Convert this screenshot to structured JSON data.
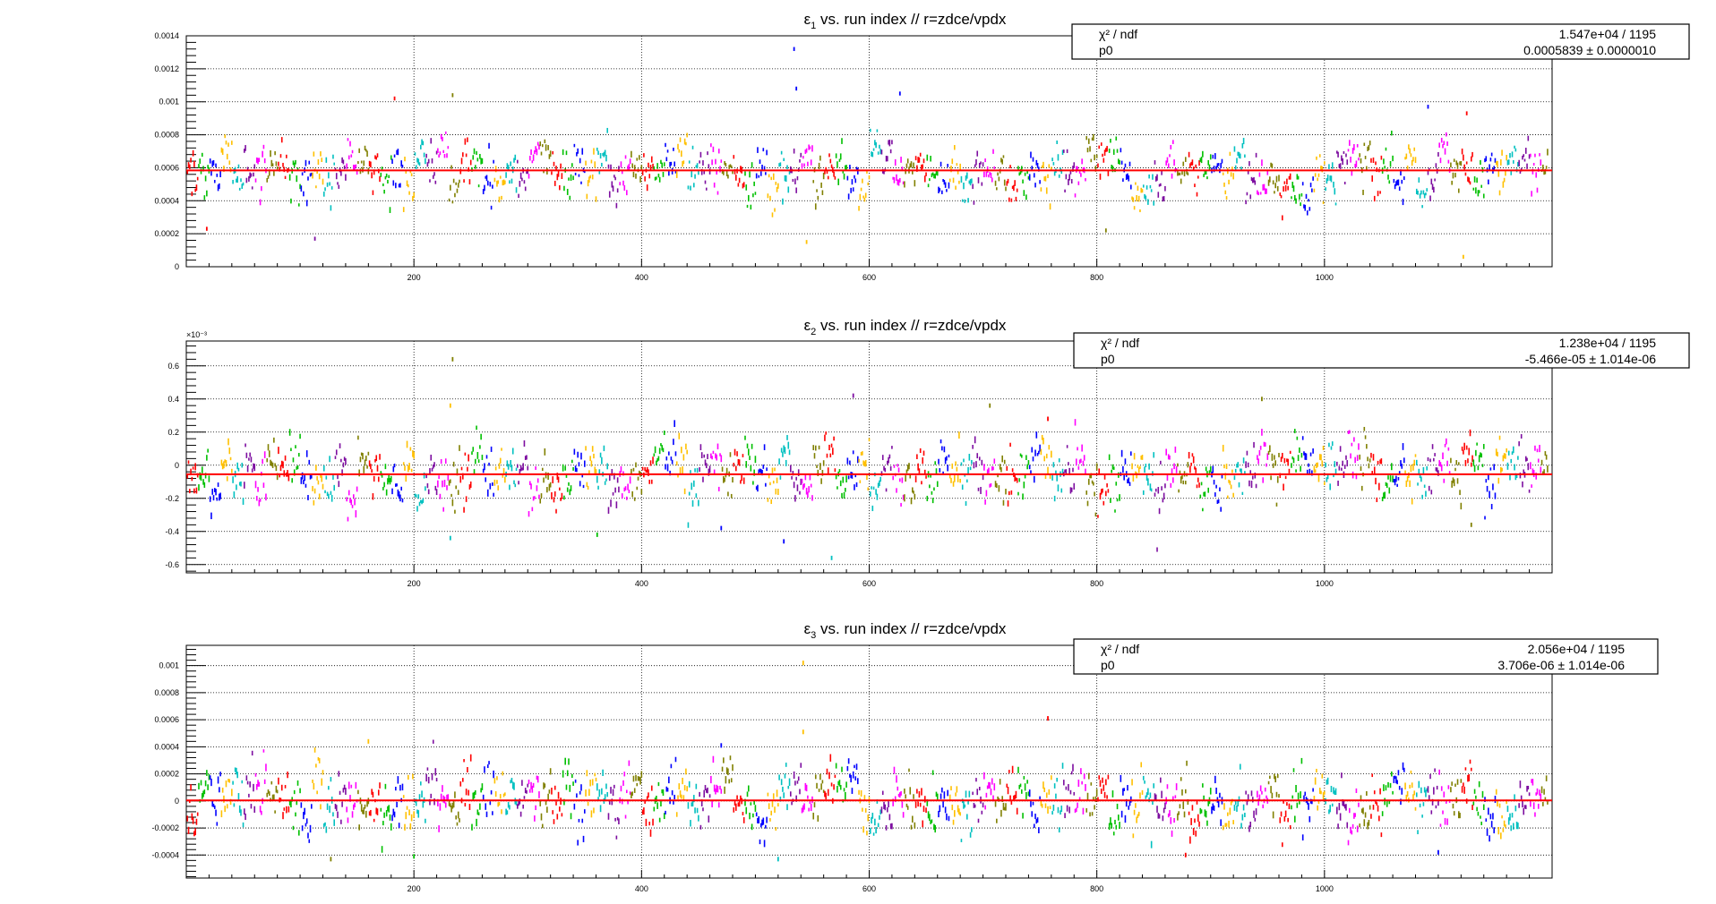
{
  "chart_data": [
    {
      "type": "scatter",
      "title": "ε₁ vs. run index // r=zdce/vpdx",
      "title_main": "ε",
      "title_sub": "1",
      "title_rest": " vs. run index // r=zdce/vpdx",
      "xlim": [
        0,
        1200
      ],
      "ylim": [
        0,
        0.0014
      ],
      "x_ticks": [
        200,
        400,
        600,
        800,
        1000
      ],
      "y_ticks": [
        0,
        0.0002,
        0.0004,
        0.0006,
        0.0008,
        0.001,
        0.0012,
        0.0014
      ],
      "y_tick_labels": [
        "0",
        "0.0002",
        "0.0004",
        "0.0006",
        "0.0008",
        "0.001",
        "0.0012",
        "0.0014"
      ],
      "y_exponent_label": "",
      "grid": true,
      "fit": {
        "name": "p0",
        "value": 0.0005839
      },
      "stats_box": {
        "row1_label": "χ² / ndf",
        "row1_value": "1.547e+04 / 1195",
        "row2_label": "p0",
        "row2_value": "0.0005839 ± 0.0000010"
      },
      "series_summary": {
        "n_points": 1196,
        "center": 0.00058,
        "spread": 0.0001
      },
      "outliers": [
        {
          "x": 534,
          "y": 0.00132,
          "color_index": 2
        },
        {
          "x": 536,
          "y": 0.00108,
          "color_index": 2
        },
        {
          "x": 234,
          "y": 0.00104,
          "color_index": 7
        },
        {
          "x": 183,
          "y": 0.00102,
          "color_index": 0
        },
        {
          "x": 627,
          "y": 0.00105,
          "color_index": 2
        },
        {
          "x": 1091,
          "y": 0.00097,
          "color_index": 2
        },
        {
          "x": 1125,
          "y": 0.00093,
          "color_index": 0
        },
        {
          "x": 113,
          "y": 0.00017,
          "color_index": 5
        },
        {
          "x": 18,
          "y": 0.00023,
          "color_index": 0
        },
        {
          "x": 1122,
          "y": 6e-05,
          "color_index": 3
        },
        {
          "x": 545,
          "y": 0.00015,
          "color_index": 3
        },
        {
          "x": 808,
          "y": 0.00022,
          "color_index": 7
        }
      ]
    },
    {
      "type": "scatter",
      "title": "ε₂ vs. run index // r=zdce/vpdx",
      "title_main": "ε",
      "title_sub": "2",
      "title_rest": " vs. run index // r=zdce/vpdx",
      "xlim": [
        0,
        1200
      ],
      "ylim": [
        -0.65,
        0.75
      ],
      "x_ticks": [
        200,
        400,
        600,
        800,
        1000
      ],
      "y_ticks": [
        -0.6,
        -0.4,
        -0.2,
        0,
        0.2,
        0.4,
        0.6
      ],
      "y_tick_labels": [
        "-0.6",
        "-0.4",
        "-0.2",
        "0",
        "0.2",
        "0.4",
        "0.6"
      ],
      "y_exponent_label": "×10⁻³",
      "grid": true,
      "fit": {
        "name": "p0",
        "value": -0.05466
      },
      "stats_box": {
        "row1_label": "χ² / ndf",
        "row1_value": "1.238e+04 / 1195",
        "row2_label": "p0",
        "row2_value": "-5.466e-05 ± 1.014e-06"
      },
      "series_summary": {
        "n_points": 1196,
        "center": -0.05,
        "spread": 0.11
      },
      "outliers": [
        {
          "x": 234,
          "y": 0.64,
          "color_index": 7
        },
        {
          "x": 232,
          "y": 0.36,
          "color_index": 3
        },
        {
          "x": 586,
          "y": 0.42,
          "color_index": 5
        },
        {
          "x": 706,
          "y": 0.36,
          "color_index": 7
        },
        {
          "x": 945,
          "y": 0.4,
          "color_index": 7
        },
        {
          "x": 757,
          "y": 0.28,
          "color_index": 0
        },
        {
          "x": 567,
          "y": -0.56,
          "color_index": 4
        },
        {
          "x": 232,
          "y": -0.44,
          "color_index": 4
        },
        {
          "x": 470,
          "y": -0.38,
          "color_index": 2
        },
        {
          "x": 525,
          "y": -0.46,
          "color_index": 2
        },
        {
          "x": 1129,
          "y": -0.36,
          "color_index": 7
        },
        {
          "x": 361,
          "y": -0.42,
          "color_index": 1
        }
      ]
    },
    {
      "type": "scatter",
      "title": "ε₃ vs. run index // r=zdce/vpdx",
      "title_main": "ε",
      "title_sub": "3",
      "title_rest": " vs. run index // r=zdce/vpdx",
      "xlim": [
        0,
        1200
      ],
      "ylim": [
        -0.00057,
        0.00115
      ],
      "x_ticks": [
        200,
        400,
        600,
        800,
        1000
      ],
      "y_ticks": [
        -0.0004,
        -0.0002,
        0,
        0.0002,
        0.0004,
        0.0006,
        0.0008,
        0.001
      ],
      "y_tick_labels": [
        "-0.0004",
        "-0.0002",
        "0",
        "0.0002",
        "0.0004",
        "0.0006",
        "0.0008",
        "0.001"
      ],
      "y_exponent_label": "",
      "grid": true,
      "fit": {
        "name": "p0",
        "value": 3.706e-06
      },
      "stats_box": {
        "row1_label": "χ² / ndf",
        "row1_value": "2.056e+04 / 1195",
        "row2_label": "p0",
        "row2_value": "3.706e-06 ± 1.014e-06"
      },
      "series_summary": {
        "n_points": 1196,
        "center": 0.0,
        "spread": 0.00014
      },
      "outliers": [
        {
          "x": 542,
          "y": 0.00102,
          "color_index": 3
        },
        {
          "x": 542,
          "y": 0.00051,
          "color_index": 3
        },
        {
          "x": 757,
          "y": 0.00061,
          "color_index": 0
        },
        {
          "x": 160,
          "y": 0.00044,
          "color_index": 3
        },
        {
          "x": 470,
          "y": 0.00041,
          "color_index": 2
        },
        {
          "x": 127,
          "y": -0.00043,
          "color_index": 7
        },
        {
          "x": 200,
          "y": -0.00041,
          "color_index": 1
        },
        {
          "x": 1100,
          "y": -0.00038,
          "color_index": 2
        },
        {
          "x": 878,
          "y": -0.0004,
          "color_index": 0
        },
        {
          "x": 520,
          "y": -0.00043,
          "color_index": 4
        }
      ]
    }
  ],
  "colors": {
    "palette": [
      "#ff0000",
      "#00c000",
      "#0000ff",
      "#ffc000",
      "#00c0c0",
      "#7d0ea0",
      "#ff00ff",
      "#808000"
    ],
    "fit_line": "#ff0000",
    "axis": "#000000",
    "grid": "#000000"
  }
}
